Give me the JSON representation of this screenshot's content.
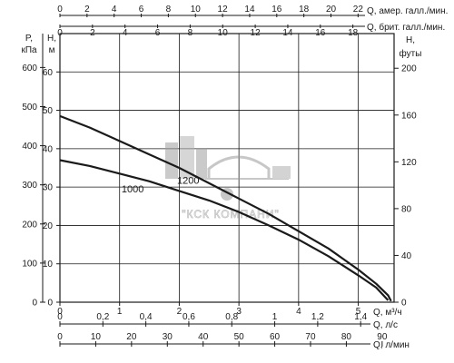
{
  "chart_data": {
    "type": "line",
    "grid": true,
    "legend": "none",
    "x_main": {
      "label": "Q, м³/ч",
      "lim": [
        0,
        5.6
      ],
      "ticks": [
        0,
        1,
        2,
        3,
        4,
        5
      ]
    },
    "x_aux_bottom": [
      {
        "label": "Q, л/с",
        "ticks": [
          "0",
          "0,2",
          "0,4",
          "0,6",
          "0,8",
          "1",
          "1,2",
          "1,4"
        ],
        "values": [
          0,
          0.2,
          0.4,
          0.6,
          0.8,
          1,
          1.2,
          1.4
        ],
        "factor": 0.27778
      },
      {
        "label": "Q, л/мин",
        "ticks": [
          "0",
          "10",
          "20",
          "30",
          "40",
          "50",
          "60",
          "70",
          "80",
          "90"
        ],
        "values": [
          0,
          10,
          20,
          30,
          40,
          50,
          60,
          70,
          80,
          90
        ],
        "factor": 16.6667
      }
    ],
    "x_aux_top": [
      {
        "label": "Q, амер. галл./мин.",
        "ticks": [
          "0",
          "2",
          "4",
          "6",
          "8",
          "10",
          "12",
          "14",
          "16",
          "18",
          "20",
          "22"
        ],
        "values": [
          0,
          2,
          4,
          6,
          8,
          10,
          12,
          14,
          16,
          18,
          20,
          22
        ],
        "factor": 4.4029
      },
      {
        "label": "Q, брит. галл./мин.",
        "ticks": [
          "0",
          "2",
          "4",
          "6",
          "8",
          "10",
          "12",
          "14",
          "16",
          "18"
        ],
        "values": [
          0,
          2,
          4,
          6,
          8,
          10,
          12,
          14,
          16,
          18
        ],
        "factor": 3.6662
      }
    ],
    "y_main": {
      "label_top": "H,",
      "label_bottom": "м",
      "lim": [
        0,
        70
      ],
      "ticks": [
        0,
        10,
        20,
        30,
        40,
        50,
        60
      ]
    },
    "y_pressure": {
      "label_top": "P,",
      "label_bottom": "кПа",
      "ticks": [
        0,
        100,
        200,
        300,
        400,
        500,
        600
      ],
      "factor": 9.81
    },
    "y_feet": {
      "label_top": "H,",
      "label_bottom": "футы",
      "ticks": [
        0,
        40,
        80,
        120,
        160,
        200
      ],
      "factor": 3.2808
    },
    "series": [
      {
        "name": "1200",
        "color": "#1a1a1a",
        "x": [
          0,
          0.5,
          1.0,
          1.5,
          2.0,
          2.5,
          3.0,
          3.5,
          4.0,
          4.5,
          5.0,
          5.3,
          5.5,
          5.55
        ],
        "y": [
          48.5,
          45.5,
          42.0,
          38.5,
          35.0,
          31.0,
          27.0,
          23.0,
          18.5,
          14.0,
          8.5,
          4.8,
          1.8,
          0.3
        ]
      },
      {
        "name": "1000",
        "color": "#1a1a1a",
        "x": [
          0,
          0.5,
          1.0,
          1.5,
          2.0,
          2.5,
          3.0,
          3.5,
          4.0,
          4.5,
          5.0,
          5.3,
          5.5
        ],
        "y": [
          37.0,
          35.5,
          33.5,
          31.5,
          29.0,
          26.5,
          23.5,
          20.0,
          16.3,
          12.0,
          7.0,
          3.8,
          0.5
        ]
      }
    ],
    "curve_labels": [
      {
        "text": "1200",
        "x": 2.15,
        "y": 31.8
      },
      {
        "text": "1000",
        "x": 1.22,
        "y": 29.6
      }
    ]
  },
  "watermark": {
    "text": "\"КСК КОМПАНИ\"",
    "color": "#8a8a8a"
  }
}
